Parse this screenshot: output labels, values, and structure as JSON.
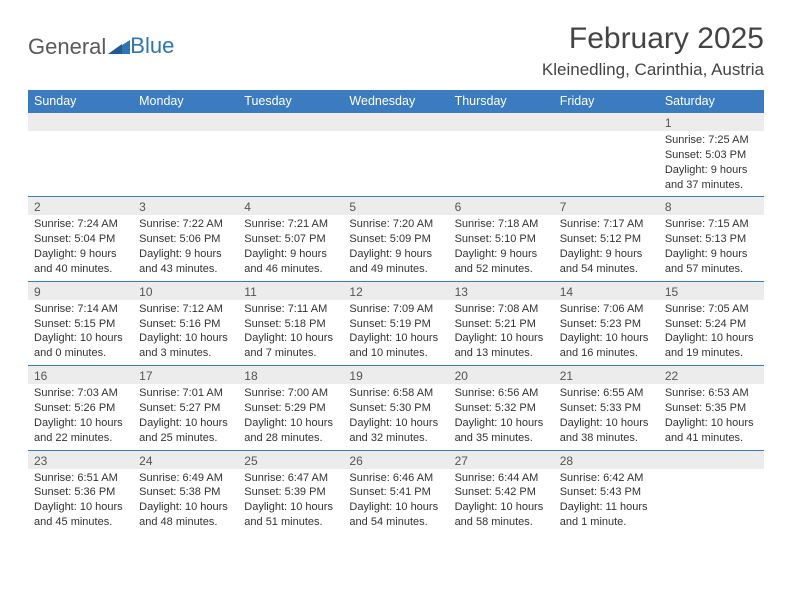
{
  "brand": {
    "part1": "General",
    "part2": "Blue"
  },
  "title": "February 2025",
  "location": "Kleinedling, Carinthia, Austria",
  "colors": {
    "header_bg": "#3b7bbf",
    "header_text": "#ffffff",
    "num_bg": "#ececec",
    "border": "#3b7bbf",
    "text": "#333333",
    "brand_gray": "#5a5a5a",
    "brand_blue": "#2e75b6"
  },
  "dayNames": [
    "Sunday",
    "Monday",
    "Tuesday",
    "Wednesday",
    "Thursday",
    "Friday",
    "Saturday"
  ],
  "weeks": [
    [
      {
        "n": "",
        "sr": "",
        "ss": "",
        "dl": ""
      },
      {
        "n": "",
        "sr": "",
        "ss": "",
        "dl": ""
      },
      {
        "n": "",
        "sr": "",
        "ss": "",
        "dl": ""
      },
      {
        "n": "",
        "sr": "",
        "ss": "",
        "dl": ""
      },
      {
        "n": "",
        "sr": "",
        "ss": "",
        "dl": ""
      },
      {
        "n": "",
        "sr": "",
        "ss": "",
        "dl": ""
      },
      {
        "n": "1",
        "sr": "Sunrise: 7:25 AM",
        "ss": "Sunset: 5:03 PM",
        "dl": "Daylight: 9 hours and 37 minutes."
      }
    ],
    [
      {
        "n": "2",
        "sr": "Sunrise: 7:24 AM",
        "ss": "Sunset: 5:04 PM",
        "dl": "Daylight: 9 hours and 40 minutes."
      },
      {
        "n": "3",
        "sr": "Sunrise: 7:22 AM",
        "ss": "Sunset: 5:06 PM",
        "dl": "Daylight: 9 hours and 43 minutes."
      },
      {
        "n": "4",
        "sr": "Sunrise: 7:21 AM",
        "ss": "Sunset: 5:07 PM",
        "dl": "Daylight: 9 hours and 46 minutes."
      },
      {
        "n": "5",
        "sr": "Sunrise: 7:20 AM",
        "ss": "Sunset: 5:09 PM",
        "dl": "Daylight: 9 hours and 49 minutes."
      },
      {
        "n": "6",
        "sr": "Sunrise: 7:18 AM",
        "ss": "Sunset: 5:10 PM",
        "dl": "Daylight: 9 hours and 52 minutes."
      },
      {
        "n": "7",
        "sr": "Sunrise: 7:17 AM",
        "ss": "Sunset: 5:12 PM",
        "dl": "Daylight: 9 hours and 54 minutes."
      },
      {
        "n": "8",
        "sr": "Sunrise: 7:15 AM",
        "ss": "Sunset: 5:13 PM",
        "dl": "Daylight: 9 hours and 57 minutes."
      }
    ],
    [
      {
        "n": "9",
        "sr": "Sunrise: 7:14 AM",
        "ss": "Sunset: 5:15 PM",
        "dl": "Daylight: 10 hours and 0 minutes."
      },
      {
        "n": "10",
        "sr": "Sunrise: 7:12 AM",
        "ss": "Sunset: 5:16 PM",
        "dl": "Daylight: 10 hours and 3 minutes."
      },
      {
        "n": "11",
        "sr": "Sunrise: 7:11 AM",
        "ss": "Sunset: 5:18 PM",
        "dl": "Daylight: 10 hours and 7 minutes."
      },
      {
        "n": "12",
        "sr": "Sunrise: 7:09 AM",
        "ss": "Sunset: 5:19 PM",
        "dl": "Daylight: 10 hours and 10 minutes."
      },
      {
        "n": "13",
        "sr": "Sunrise: 7:08 AM",
        "ss": "Sunset: 5:21 PM",
        "dl": "Daylight: 10 hours and 13 minutes."
      },
      {
        "n": "14",
        "sr": "Sunrise: 7:06 AM",
        "ss": "Sunset: 5:23 PM",
        "dl": "Daylight: 10 hours and 16 minutes."
      },
      {
        "n": "15",
        "sr": "Sunrise: 7:05 AM",
        "ss": "Sunset: 5:24 PM",
        "dl": "Daylight: 10 hours and 19 minutes."
      }
    ],
    [
      {
        "n": "16",
        "sr": "Sunrise: 7:03 AM",
        "ss": "Sunset: 5:26 PM",
        "dl": "Daylight: 10 hours and 22 minutes."
      },
      {
        "n": "17",
        "sr": "Sunrise: 7:01 AM",
        "ss": "Sunset: 5:27 PM",
        "dl": "Daylight: 10 hours and 25 minutes."
      },
      {
        "n": "18",
        "sr": "Sunrise: 7:00 AM",
        "ss": "Sunset: 5:29 PM",
        "dl": "Daylight: 10 hours and 28 minutes."
      },
      {
        "n": "19",
        "sr": "Sunrise: 6:58 AM",
        "ss": "Sunset: 5:30 PM",
        "dl": "Daylight: 10 hours and 32 minutes."
      },
      {
        "n": "20",
        "sr": "Sunrise: 6:56 AM",
        "ss": "Sunset: 5:32 PM",
        "dl": "Daylight: 10 hours and 35 minutes."
      },
      {
        "n": "21",
        "sr": "Sunrise: 6:55 AM",
        "ss": "Sunset: 5:33 PM",
        "dl": "Daylight: 10 hours and 38 minutes."
      },
      {
        "n": "22",
        "sr": "Sunrise: 6:53 AM",
        "ss": "Sunset: 5:35 PM",
        "dl": "Daylight: 10 hours and 41 minutes."
      }
    ],
    [
      {
        "n": "23",
        "sr": "Sunrise: 6:51 AM",
        "ss": "Sunset: 5:36 PM",
        "dl": "Daylight: 10 hours and 45 minutes."
      },
      {
        "n": "24",
        "sr": "Sunrise: 6:49 AM",
        "ss": "Sunset: 5:38 PM",
        "dl": "Daylight: 10 hours and 48 minutes."
      },
      {
        "n": "25",
        "sr": "Sunrise: 6:47 AM",
        "ss": "Sunset: 5:39 PM",
        "dl": "Daylight: 10 hours and 51 minutes."
      },
      {
        "n": "26",
        "sr": "Sunrise: 6:46 AM",
        "ss": "Sunset: 5:41 PM",
        "dl": "Daylight: 10 hours and 54 minutes."
      },
      {
        "n": "27",
        "sr": "Sunrise: 6:44 AM",
        "ss": "Sunset: 5:42 PM",
        "dl": "Daylight: 10 hours and 58 minutes."
      },
      {
        "n": "28",
        "sr": "Sunrise: 6:42 AM",
        "ss": "Sunset: 5:43 PM",
        "dl": "Daylight: 11 hours and 1 minute."
      },
      {
        "n": "",
        "sr": "",
        "ss": "",
        "dl": ""
      }
    ]
  ]
}
